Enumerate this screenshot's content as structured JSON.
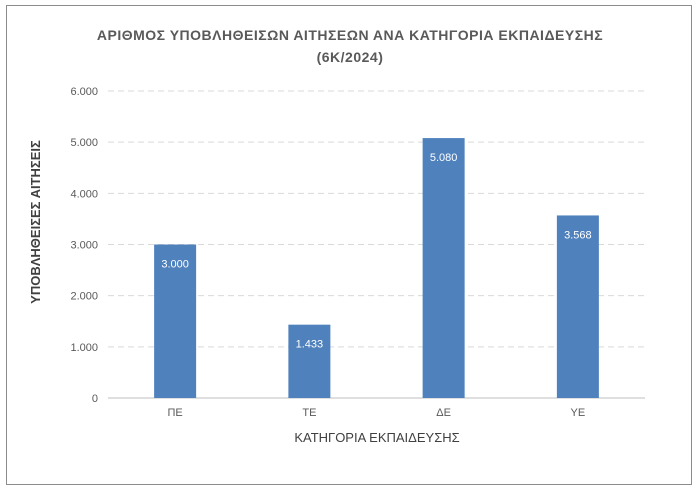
{
  "chart_data": {
    "type": "bar",
    "title": "ΑΡΙΘΜΟΣ ΥΠΟΒΛΗΘΕΙΣΩΝ ΑΙΤΗΣΕΩΝ ΑΝΑ ΚΑΤΗΓΟΡΙΑ ΕΚΠΑΙΔΕΥΣΗΣ",
    "subtitle": "(6Κ/2024)",
    "xlabel": "ΚΑΤΗΓΟΡΙΑ ΕΚΠΑΙΔΕΥΣΗΣ",
    "ylabel": "ΥΠΟΒΛΗΘΕΙΣΕΣ ΑΙΤΗΣΕΙΣ",
    "categories": [
      "ΠΕ",
      "ΤΕ",
      "ΔΕ",
      "ΥΕ"
    ],
    "values": [
      3000,
      1433,
      5080,
      3568
    ],
    "data_labels": [
      "3.000",
      "1.433",
      "5.080",
      "3.568"
    ],
    "ylim": [
      0,
      6000
    ],
    "yticks": [
      0,
      1000,
      2000,
      3000,
      4000,
      5000,
      6000
    ],
    "ytick_labels": [
      "0",
      "1.000",
      "2.000",
      "3.000",
      "4.000",
      "5.000",
      "6.000"
    ],
    "grid": true,
    "bar_color": "#4f81bd",
    "grid_color": "#d9d9d9"
  }
}
